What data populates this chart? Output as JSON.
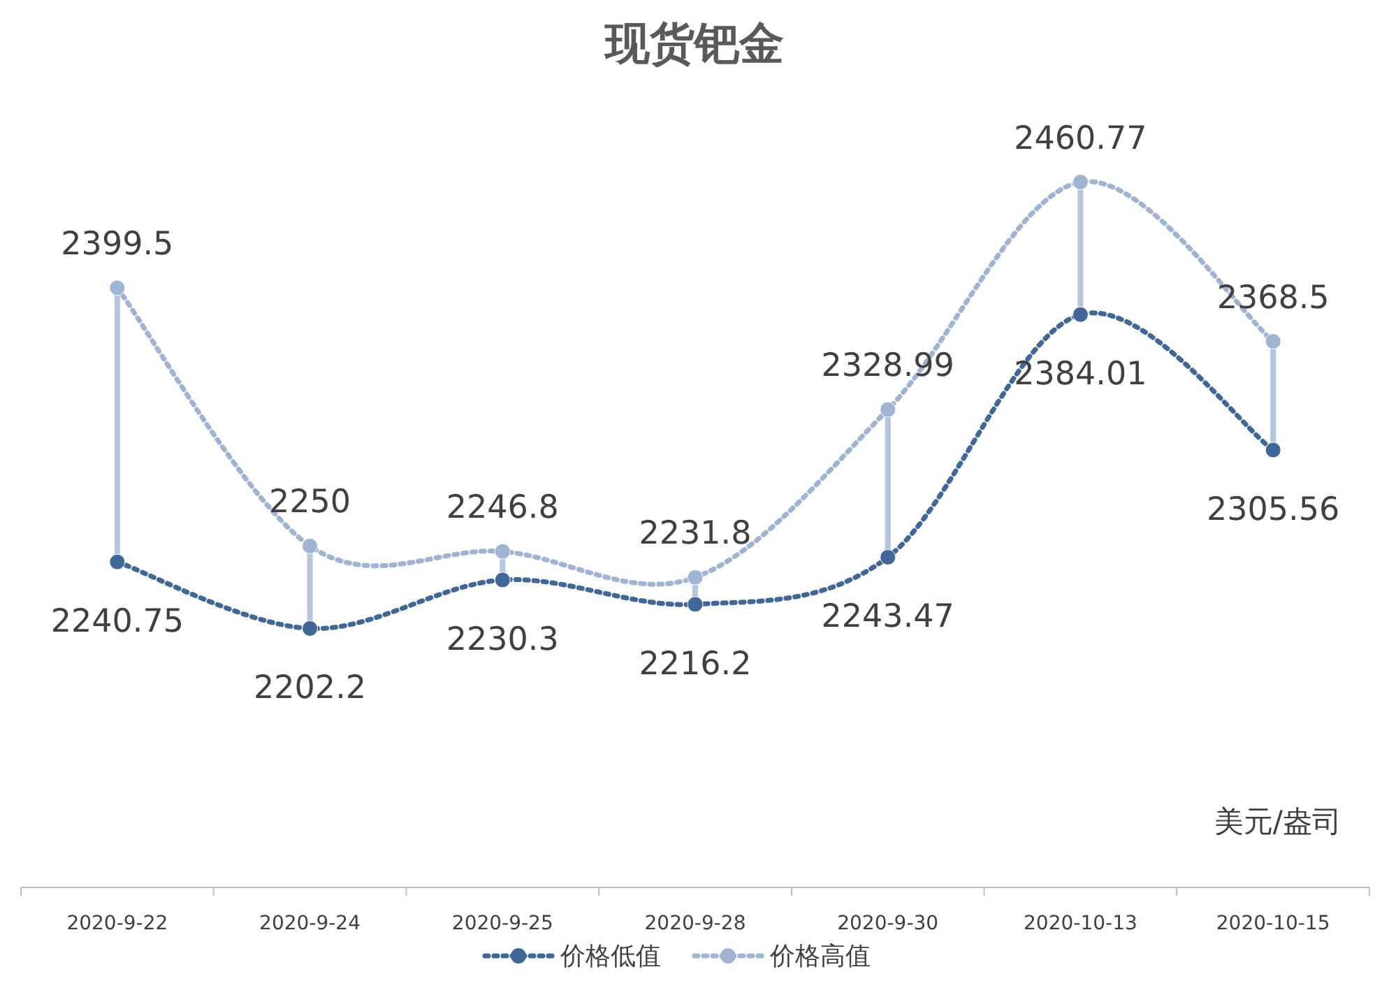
{
  "chart_data": {
    "type": "line",
    "title": "现货钯金",
    "categories": [
      "2020-9-22",
      "2020-9-24",
      "2020-9-25",
      "2020-9-28",
      "2020-9-30",
      "2020-10-13",
      "2020-10-15"
    ],
    "series": [
      {
        "name": "价格低值",
        "color": "#3f6797",
        "values": [
          2240.75,
          2202.2,
          2230.3,
          2216.2,
          2243.47,
          2384.01,
          2305.56
        ]
      },
      {
        "name": "价格高值",
        "color": "#9fb4d3",
        "values": [
          2399.5,
          2250,
          2246.8,
          2231.8,
          2328.99,
          2460.77,
          2368.5
        ]
      }
    ],
    "tick_labels": "x",
    "data_labels": true,
    "legend": "bottom",
    "marker": "circle",
    "line_style": "dotted",
    "annotations": [
      "美元/盎司"
    ]
  }
}
